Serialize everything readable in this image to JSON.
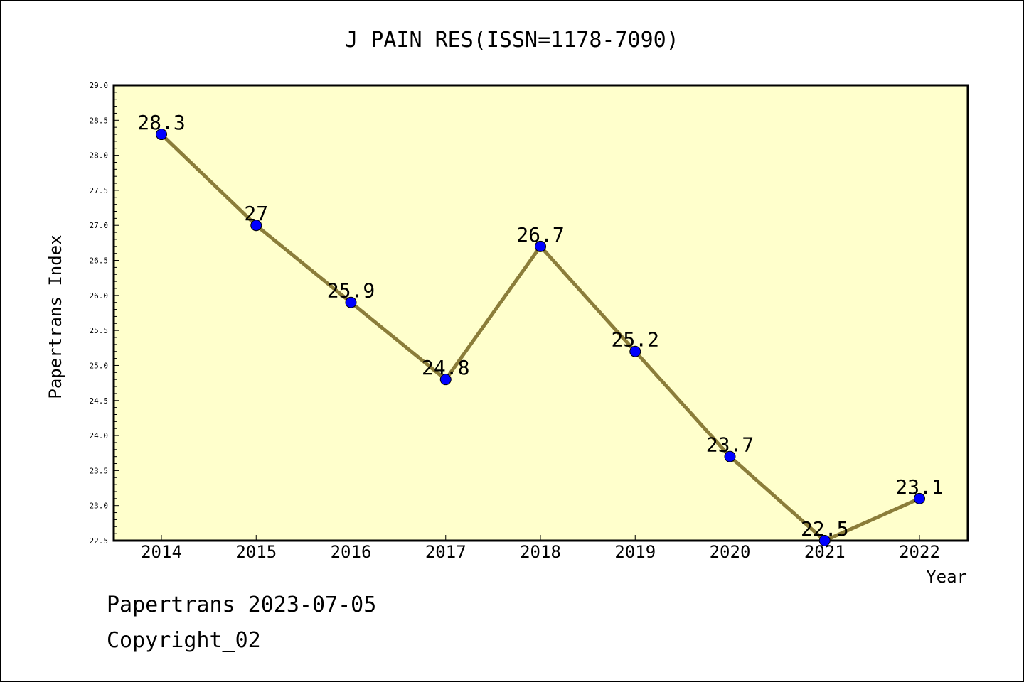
{
  "footer": {
    "date_line": "Papertrans 2023-07-05",
    "copyright_line": "Copyright_02"
  },
  "chart_data": {
    "type": "line",
    "title": "J PAIN RES(ISSN=1178-7090)",
    "xlabel": "Year",
    "ylabel": "Papertrans Index",
    "categories": [
      "2014",
      "2015",
      "2016",
      "2017",
      "2018",
      "2019",
      "2020",
      "2021",
      "2022"
    ],
    "series": [
      {
        "values": [
          28.3,
          27,
          25.9,
          24.8,
          26.7,
          25.2,
          23.7,
          22.5,
          23.1
        ],
        "labels": [
          "28.3",
          "27",
          "25.9",
          "24.8",
          "26.7",
          "25.2",
          "23.7",
          "22.5",
          "23.1"
        ]
      }
    ],
    "ylim": [
      22.5,
      29.0
    ],
    "yticks": [
      "22.5",
      "23.0",
      "23.5",
      "24.0",
      "24.5",
      "25.0",
      "25.5",
      "26.0",
      "26.5",
      "27.0",
      "27.5",
      "28.0",
      "28.5",
      "29.0"
    ],
    "grid": false,
    "colors": {
      "plot_background": "#ffffcc",
      "line": "#8b7d3a",
      "marker": "#0000ff"
    }
  }
}
